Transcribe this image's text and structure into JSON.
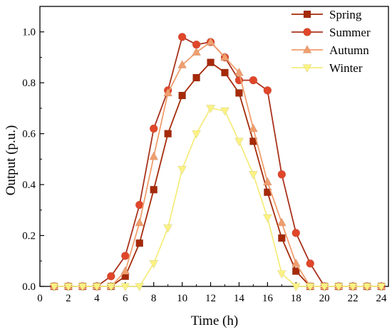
{
  "chart_data": {
    "type": "line",
    "title": "",
    "xlabel": "Time (h)",
    "ylabel": "Output (p.u.)",
    "xlim": [
      0,
      24.5
    ],
    "ylim": [
      0,
      1.1
    ],
    "x_ticks": [
      "0",
      "2",
      "4",
      "6",
      "8",
      "10",
      "12",
      "14",
      "16",
      "18",
      "20",
      "22",
      "24"
    ],
    "y_ticks": [
      "0.0",
      "0.2",
      "0.4",
      "0.6",
      "0.8",
      "1.0"
    ],
    "grid": false,
    "legend_position": "top-right",
    "x": [
      1,
      2,
      3,
      4,
      5,
      6,
      7,
      8,
      9,
      10,
      11,
      12,
      13,
      14,
      15,
      16,
      17,
      18,
      19,
      20,
      21,
      22,
      23,
      24
    ],
    "series": [
      {
        "name": "Spring",
        "marker": "square",
        "color": "#a52a0a",
        "values": [
          0,
          0,
          0,
          0,
          0,
          0.04,
          0.17,
          0.38,
          0.6,
          0.75,
          0.82,
          0.88,
          0.84,
          0.76,
          0.57,
          0.37,
          0.19,
          0.06,
          0,
          0,
          0,
          0,
          0,
          0
        ]
      },
      {
        "name": "Summer",
        "marker": "circle",
        "color": "#e0462a",
        "line_color": "#a9321d",
        "values": [
          0,
          0,
          0,
          0,
          0.04,
          0.12,
          0.32,
          0.62,
          0.77,
          0.98,
          0.95,
          0.96,
          0.9,
          0.81,
          0.81,
          0.77,
          0.44,
          0.21,
          0.09,
          0,
          0,
          0,
          0,
          0
        ]
      },
      {
        "name": "Autumn",
        "marker": "triangle-up",
        "color": "#f09e6e",
        "values": [
          0,
          0,
          0,
          0,
          0,
          0.06,
          0.25,
          0.51,
          0.76,
          0.87,
          0.92,
          0.96,
          0.9,
          0.84,
          0.62,
          0.41,
          0.25,
          0.09,
          0,
          0,
          0,
          0,
          0,
          0
        ]
      },
      {
        "name": "Winter",
        "marker": "triangle-down",
        "color": "#fbf283",
        "line_color": "#f5ec7e",
        "values": [
          0,
          0,
          0,
          0,
          0,
          0,
          0,
          0.09,
          0.23,
          0.46,
          0.6,
          0.7,
          0.69,
          0.57,
          0.44,
          0.27,
          0.05,
          0,
          0,
          0,
          0,
          0,
          0,
          0
        ]
      }
    ]
  }
}
